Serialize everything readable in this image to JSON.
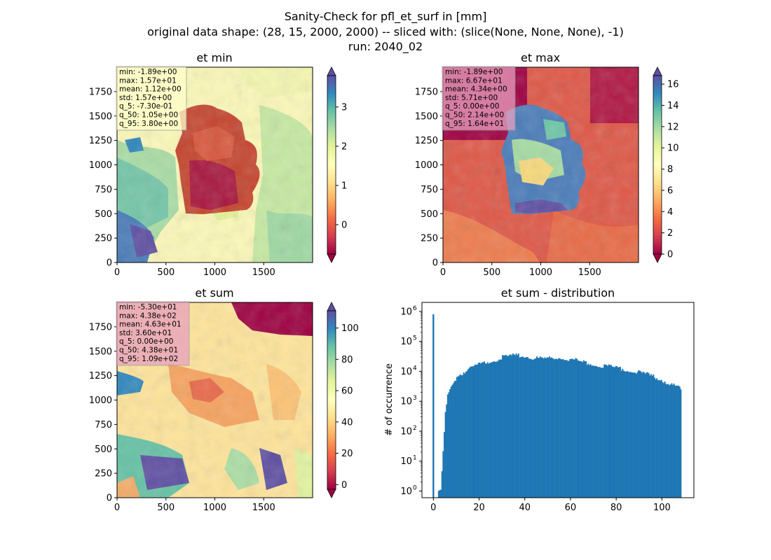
{
  "figure": {
    "title_lines": [
      "Sanity-Check for pfl_et_surf in [mm]",
      "original data shape: (28, 15, 2000, 2000) -- sliced with: (slice(None, None, None), -1)",
      "run: 2040_02"
    ]
  },
  "chart_data": [
    {
      "type": "heatmap",
      "title": "et min",
      "xlim": [
        0,
        2000
      ],
      "ylim": [
        0,
        2000
      ],
      "xticks": [
        0,
        500,
        1000,
        1500
      ],
      "yticks": [
        0,
        250,
        500,
        750,
        1000,
        1250,
        1500,
        1750
      ],
      "colormap": "Spectral",
      "colorbar": {
        "vmin": -0.75,
        "vmax": 3.8,
        "ticks": [
          0,
          1,
          2,
          3
        ],
        "extend": "both"
      },
      "stats": [
        "min: -1.89e+00",
        "max: 1.57e+01",
        "mean: 1.12e+00",
        "std: 1.57e+00",
        "q_5: -7.30e-01",
        "q_50: 1.05e+00",
        "q_95: 3.80e+00"
      ],
      "statbox_color": "#ffffcc"
    },
    {
      "type": "heatmap",
      "title": "et max",
      "xlim": [
        0,
        2000
      ],
      "ylim": [
        0,
        2000
      ],
      "xticks": [
        0,
        500,
        1000,
        1500
      ],
      "yticks": [
        0,
        250,
        500,
        750,
        1000,
        1250,
        1500,
        1750
      ],
      "colormap": "Spectral",
      "colorbar": {
        "vmin": 0,
        "vmax": 16.8,
        "ticks": [
          0,
          2,
          4,
          6,
          8,
          10,
          12,
          14,
          16
        ],
        "extend": "both"
      },
      "stats": [
        "min: -1.89e+00",
        "max: 6.67e+01",
        "mean: 4.34e+00",
        "std: 5.71e+00",
        "q_5: 0.00e+00",
        "q_50: 2.14e+00",
        "q_95: 1.64e+01"
      ],
      "statbox_color": "#e8a0bf"
    },
    {
      "type": "heatmap",
      "title": "et sum",
      "xlim": [
        0,
        2000
      ],
      "ylim": [
        0,
        2000
      ],
      "xticks": [
        0,
        500,
        1000,
        1500
      ],
      "yticks": [
        0,
        250,
        500,
        750,
        1000,
        1250,
        1500,
        1750
      ],
      "colormap": "Spectral",
      "colorbar": {
        "vmin": -3,
        "vmax": 111,
        "ticks": [
          0,
          20,
          40,
          60,
          80,
          100
        ],
        "extend": "both"
      },
      "stats": [
        "min: -5.30e+01",
        "max: 4.38e+02",
        "mean: 4.63e+01",
        "std: 3.60e+01",
        "q_5: 0.00e+00",
        "q_50: 4.38e+01",
        "q_95: 1.09e+02"
      ],
      "statbox_color": "#e8a0bf"
    },
    {
      "type": "bar",
      "title": "et sum - distribution",
      "xlabel": "",
      "ylabel": "# of occurrence",
      "yscale": "log",
      "xlim": [
        -5,
        114
      ],
      "ylim": [
        0.6,
        2000000
      ],
      "xticks": [
        0,
        20,
        40,
        60,
        80,
        100
      ],
      "yticks": [
        1,
        10,
        100,
        1000,
        10000,
        100000,
        1000000
      ],
      "color": "#1f77b4",
      "spike": {
        "x": 0,
        "value": 800000
      },
      "bins": [
        [
          2,
          1
        ],
        [
          3,
          1
        ],
        [
          4,
          20
        ],
        [
          5,
          400
        ],
        [
          6,
          1500
        ],
        [
          8,
          4000
        ],
        [
          10,
          6500
        ],
        [
          12,
          8500
        ],
        [
          15,
          11000
        ],
        [
          18,
          15000
        ],
        [
          20,
          17000
        ],
        [
          22,
          19000
        ],
        [
          25,
          22000
        ],
        [
          28,
          26000
        ],
        [
          30,
          29000
        ],
        [
          33,
          32000
        ],
        [
          35,
          33000
        ],
        [
          38,
          33000
        ],
        [
          40,
          31000
        ],
        [
          42,
          29000
        ],
        [
          45,
          27000
        ],
        [
          48,
          26000
        ],
        [
          50,
          27000
        ],
        [
          52,
          28000
        ],
        [
          55,
          28000
        ],
        [
          58,
          27000
        ],
        [
          60,
          25000
        ],
        [
          63,
          23000
        ],
        [
          65,
          20000
        ],
        [
          68,
          18000
        ],
        [
          70,
          17000
        ],
        [
          72,
          16000
        ],
        [
          75,
          15000
        ],
        [
          78,
          14000
        ],
        [
          80,
          13000
        ],
        [
          83,
          12000
        ],
        [
          85,
          11000
        ],
        [
          88,
          10000
        ],
        [
          90,
          9000
        ],
        [
          93,
          8000
        ],
        [
          95,
          7000
        ],
        [
          98,
          6000
        ],
        [
          100,
          5000
        ],
        [
          103,
          4000
        ],
        [
          105,
          3300
        ],
        [
          107,
          3000
        ],
        [
          108,
          2500
        ]
      ]
    }
  ]
}
